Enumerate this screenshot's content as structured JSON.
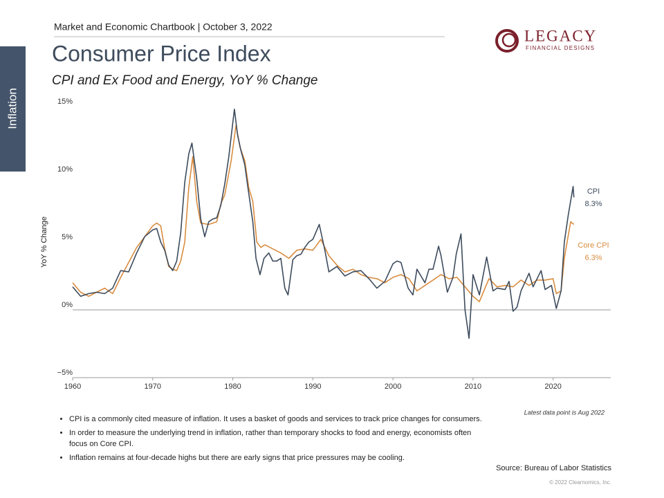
{
  "header": "Market and Economic Chartbook | October 3, 2022",
  "section_tab": "Inflation",
  "logo": {
    "name": "LEGACY",
    "tagline": "FINANCIAL DESIGNS"
  },
  "chart_data": {
    "type": "line",
    "title": "Consumer Price Index",
    "subtitle": "CPI and Ex Food and Energy, YoY % Change",
    "y_label": "YoY % Change",
    "xlim": [
      1960,
      2027.2
    ],
    "xticks": [
      1960,
      1970,
      1980,
      1990,
      2000,
      2010,
      2020
    ],
    "ylim": [
      -5,
      15
    ],
    "yticks": [
      {
        "value": -5,
        "label": "−5%"
      },
      {
        "value": 0,
        "label": "0%"
      },
      {
        "value": 5,
        "label": "5%"
      },
      {
        "value": 10,
        "label": "10%"
      },
      {
        "value": 15,
        "label": "15%"
      }
    ],
    "series": [
      {
        "name": "CPI",
        "color": "#3d4b5c",
        "end_label": "8.3%",
        "x": [
          1960,
          1961,
          1962,
          1963,
          1964,
          1965,
          1966,
          1967,
          1968,
          1969,
          1970,
          1970.5,
          1971,
          1971.5,
          1972,
          1972.5,
          1973,
          1973.5,
          1974,
          1974.5,
          1974.9,
          1975.5,
          1976,
          1976.5,
          1977,
          1977.5,
          1978,
          1978.5,
          1979,
          1979.5,
          1980.2,
          1980.6,
          1981,
          1981.5,
          1981.9,
          1982.5,
          1982.9,
          1983.4,
          1983.9,
          1984.5,
          1985,
          1985.5,
          1986,
          1986.5,
          1986.9,
          1987.5,
          1988,
          1988.5,
          1989,
          1989.5,
          1990,
          1990.8,
          1991.5,
          1992,
          1993,
          1994,
          1995,
          1996,
          1997,
          1998,
          1999,
          2000,
          2000.5,
          2001,
          2001.9,
          2002.5,
          2003,
          2004,
          2004.5,
          2005,
          2005.7,
          2006,
          2006.8,
          2007.5,
          2007.9,
          2008.5,
          2009,
          2009.5,
          2010,
          2010.8,
          2011.7,
          2012.5,
          2013,
          2014,
          2014.5,
          2015,
          2015.5,
          2016,
          2017,
          2017.5,
          2018.5,
          2019,
          2019.8,
          2020.4,
          2021,
          2021.4,
          2021.9,
          2022.5,
          2022.6
        ],
        "values": [
          1.7,
          1.0,
          1.2,
          1.3,
          1.2,
          1.6,
          2.9,
          2.8,
          4.2,
          5.4,
          5.9,
          6.0,
          5.0,
          4.4,
          3.3,
          2.9,
          3.6,
          5.7,
          9.4,
          11.5,
          12.3,
          9.7,
          6.7,
          5.4,
          6.5,
          6.7,
          6.8,
          7.7,
          9.3,
          11.3,
          14.8,
          12.9,
          11.8,
          10.7,
          9.0,
          6.5,
          3.8,
          2.6,
          3.8,
          4.2,
          3.6,
          3.6,
          3.8,
          1.6,
          1.1,
          3.7,
          4.0,
          4.1,
          4.6,
          5.0,
          5.2,
          6.3,
          4.4,
          2.8,
          3.2,
          2.5,
          2.8,
          2.9,
          2.3,
          1.6,
          2.1,
          3.4,
          3.6,
          3.5,
          1.6,
          1.1,
          3.0,
          2.0,
          3.0,
          3.0,
          4.7,
          4.0,
          1.3,
          2.4,
          4.1,
          5.6,
          0.0,
          -2.1,
          2.6,
          1.1,
          3.9,
          1.4,
          1.6,
          1.5,
          2.1,
          -0.1,
          0.2,
          1.4,
          2.7,
          1.7,
          2.9,
          1.5,
          1.8,
          0.1,
          1.4,
          5.0,
          7.0,
          9.1,
          8.3
        ]
      },
      {
        "name": "Core CPI",
        "color": "#d98c3f",
        "end_label": "6.3%",
        "x": [
          1960,
          1961,
          1962,
          1963,
          1964,
          1965,
          1966,
          1967,
          1968,
          1969,
          1970,
          1970.5,
          1971,
          1971.5,
          1972,
          1972.5,
          1973,
          1973.5,
          1974,
          1974.5,
          1975,
          1975.5,
          1976,
          1977,
          1978,
          1978.5,
          1979,
          1979.8,
          1980.4,
          1980.9,
          1981.5,
          1982,
          1982.5,
          1983,
          1983.5,
          1984,
          1985,
          1986,
          1987,
          1988,
          1989,
          1990,
          1991,
          1992,
          1993,
          1994,
          1995,
          1996,
          1997,
          1998,
          1999,
          2000,
          2001,
          2002,
          2003,
          2004,
          2005,
          2006,
          2007,
          2008,
          2009,
          2010,
          2010.8,
          2011.5,
          2012,
          2013,
          2014,
          2015,
          2016,
          2017,
          2018,
          2019,
          2020,
          2020.4,
          2021,
          2021.4,
          2021.9,
          2022.2,
          2022.6
        ],
        "values": [
          2.0,
          1.3,
          1.0,
          1.3,
          1.6,
          1.2,
          2.4,
          3.5,
          4.6,
          5.4,
          6.2,
          6.4,
          6.2,
          4.5,
          3.2,
          3.0,
          2.9,
          3.6,
          5.0,
          9.0,
          11.3,
          8.0,
          6.4,
          6.3,
          6.5,
          7.8,
          8.5,
          11.0,
          13.6,
          12.0,
          11.0,
          9.0,
          8.0,
          5.0,
          4.6,
          4.8,
          4.5,
          4.2,
          3.8,
          4.4,
          4.5,
          4.4,
          5.2,
          4.0,
          3.3,
          2.8,
          3.0,
          2.6,
          2.4,
          2.3,
          2.0,
          2.4,
          2.6,
          2.3,
          1.4,
          1.8,
          2.2,
          2.6,
          2.3,
          2.4,
          1.7,
          1.0,
          0.6,
          1.6,
          2.3,
          1.7,
          1.8,
          1.7,
          2.2,
          1.8,
          2.2,
          2.2,
          2.3,
          1.2,
          1.4,
          3.8,
          5.5,
          6.5,
          6.3
        ]
      }
    ],
    "note": "Latest data point is Aug 2022"
  },
  "bullets": [
    "CPI is a commonly cited measure of inflation. It uses a basket of goods and services to track price changes for consumers.",
    "In order to measure the underlying trend in inflation, rather than temporary shocks to food and energy, economists often focus on Core CPI.",
    "Inflation remains at four-decade highs but there are early signs that price pressures may be cooling."
  ],
  "source": "Source: Bureau of Labor Statistics",
  "copyright": "© 2022 Clearnomics, Inc."
}
